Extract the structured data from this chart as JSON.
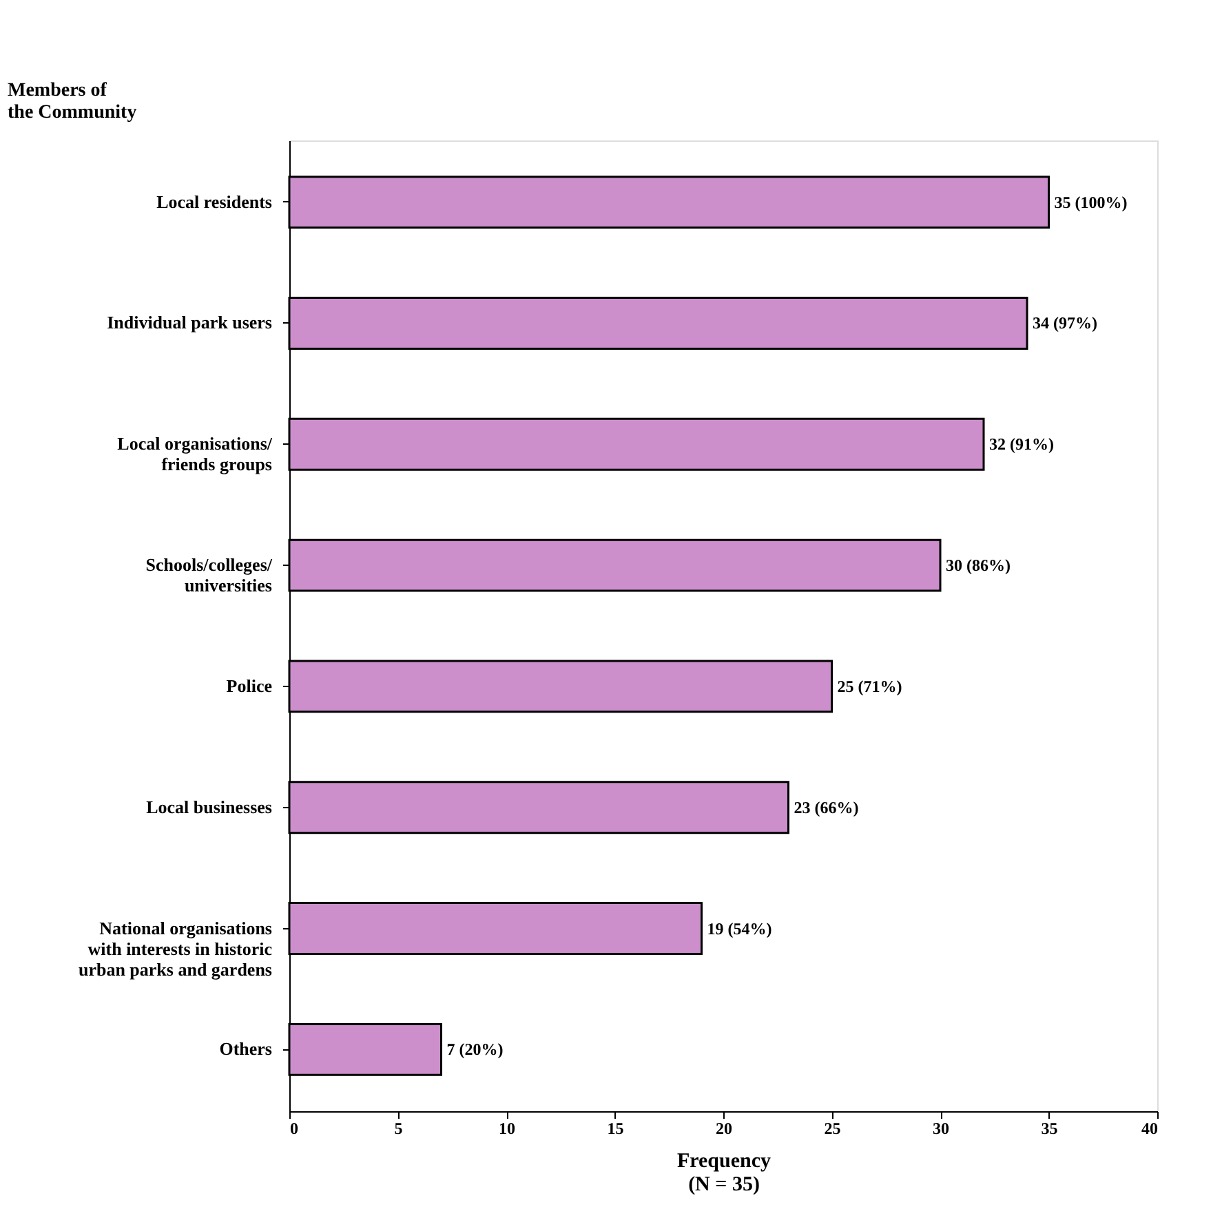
{
  "chart_data": {
    "type": "bar",
    "orientation": "horizontal",
    "ylabel": "Members of\nthe Community",
    "xlabel": "Frequency\n(N = 35)",
    "categories": [
      "Local residents",
      "Individual park users",
      "Local organisations/\nfriends groups",
      "Schools/colleges/\nuniversities",
      "Police",
      "Local businesses",
      "National organisations\nwith interests in historic\nurban parks and gardens",
      "Others"
    ],
    "values": [
      35,
      34,
      32,
      30,
      25,
      23,
      19,
      7
    ],
    "value_labels": [
      "35 (100%)",
      "34 (97%)",
      "32 (91%)",
      "30 (86%)",
      "25 (71%)",
      "23 (66%)",
      "19 (54%)",
      "7 (20%)"
    ],
    "color": "#cc8fcc",
    "xlim": [
      0,
      40
    ],
    "xticks": [
      0,
      5,
      10,
      15,
      20,
      25,
      30,
      35,
      40
    ],
    "grid": false
  }
}
